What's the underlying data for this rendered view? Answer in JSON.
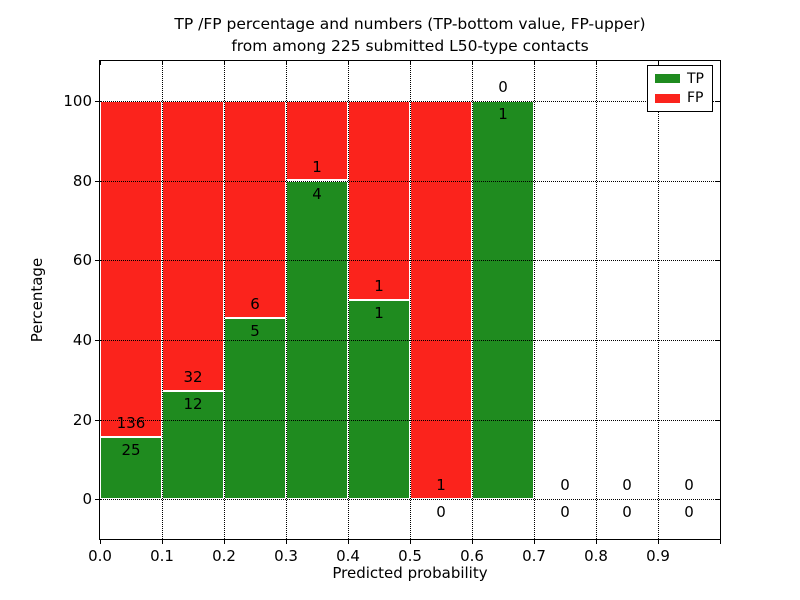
{
  "figure": {
    "title_line1": "TP /FP percentage and numbers (TP-bottom value, FP-upper)",
    "title_line2": "from among 225 submitted L50-type contacts"
  },
  "axes": {
    "xlabel": "Predicted probability",
    "ylabel": "Percentage"
  },
  "legend": {
    "items": [
      {
        "label": "TP",
        "color_key": "tp"
      },
      {
        "label": "FP",
        "color_key": "fp"
      }
    ]
  },
  "colors": {
    "tp": "#1f8b1f",
    "fp": "#fb231c",
    "bar_edge": "#ffffff",
    "grid": "#000000",
    "text": "#000000",
    "frame": "#000000",
    "background": "#ffffff"
  },
  "chart_data": {
    "type": "bar",
    "stacked": true,
    "grid": true,
    "legend_position": "upper right",
    "title": "TP /FP percentage and numbers (TP-bottom value, FP-upper)\nfrom among 225 submitted L50-type contacts",
    "xlabel": "Predicted probability",
    "ylabel": "Percentage",
    "xlim": [
      0.0,
      1.0
    ],
    "ylim": [
      -10,
      110
    ],
    "total_contacts": 225,
    "series": [
      {
        "name": "TP",
        "color": "#1f8b1f"
      },
      {
        "name": "FP",
        "color": "#fb231c"
      }
    ],
    "x_ticks": [
      {
        "label": "0.0",
        "value": 0.0
      },
      {
        "label": "0.1",
        "value": 0.1
      },
      {
        "label": "0.2",
        "value": 0.2
      },
      {
        "label": "0.3",
        "value": 0.3
      },
      {
        "label": "0.4",
        "value": 0.4
      },
      {
        "label": "0.5",
        "value": 0.5
      },
      {
        "label": "0.6",
        "value": 0.6
      },
      {
        "label": "0.7",
        "value": 0.7
      },
      {
        "label": "0.8",
        "value": 0.8
      },
      {
        "label": "0.9",
        "value": 0.9
      }
    ],
    "y_ticks": [
      {
        "label": "0",
        "value": 0
      },
      {
        "label": "20",
        "value": 20
      },
      {
        "label": "40",
        "value": 40
      },
      {
        "label": "60",
        "value": 60
      },
      {
        "label": "80",
        "value": 80
      },
      {
        "label": "100",
        "value": 100
      }
    ],
    "bins": [
      {
        "range": [
          0.0,
          0.1
        ],
        "tp": 25,
        "fp": 136,
        "tp_pct": 15.53,
        "fp_pct": 84.47
      },
      {
        "range": [
          0.1,
          0.2
        ],
        "tp": 12,
        "fp": 32,
        "tp_pct": 27.27,
        "fp_pct": 72.73
      },
      {
        "range": [
          0.2,
          0.3
        ],
        "tp": 5,
        "fp": 6,
        "tp_pct": 45.45,
        "fp_pct": 54.55
      },
      {
        "range": [
          0.3,
          0.4
        ],
        "tp": 4,
        "fp": 1,
        "tp_pct": 80.0,
        "fp_pct": 20.0
      },
      {
        "range": [
          0.4,
          0.5
        ],
        "tp": 1,
        "fp": 1,
        "tp_pct": 50.0,
        "fp_pct": 50.0
      },
      {
        "range": [
          0.5,
          0.6
        ],
        "tp": 0,
        "fp": 1,
        "tp_pct": 0.0,
        "fp_pct": 100.0
      },
      {
        "range": [
          0.6,
          0.7
        ],
        "tp": 1,
        "fp": 0,
        "tp_pct": 100.0,
        "fp_pct": 0.0
      },
      {
        "range": [
          0.7,
          0.8
        ],
        "tp": 0,
        "fp": 0,
        "tp_pct": null,
        "fp_pct": null
      },
      {
        "range": [
          0.8,
          0.9
        ],
        "tp": 0,
        "fp": 0,
        "tp_pct": null,
        "fp_pct": null
      },
      {
        "range": [
          0.9,
          1.0
        ],
        "tp": 0,
        "fp": 0,
        "tp_pct": null,
        "fp_pct": null
      }
    ]
  }
}
